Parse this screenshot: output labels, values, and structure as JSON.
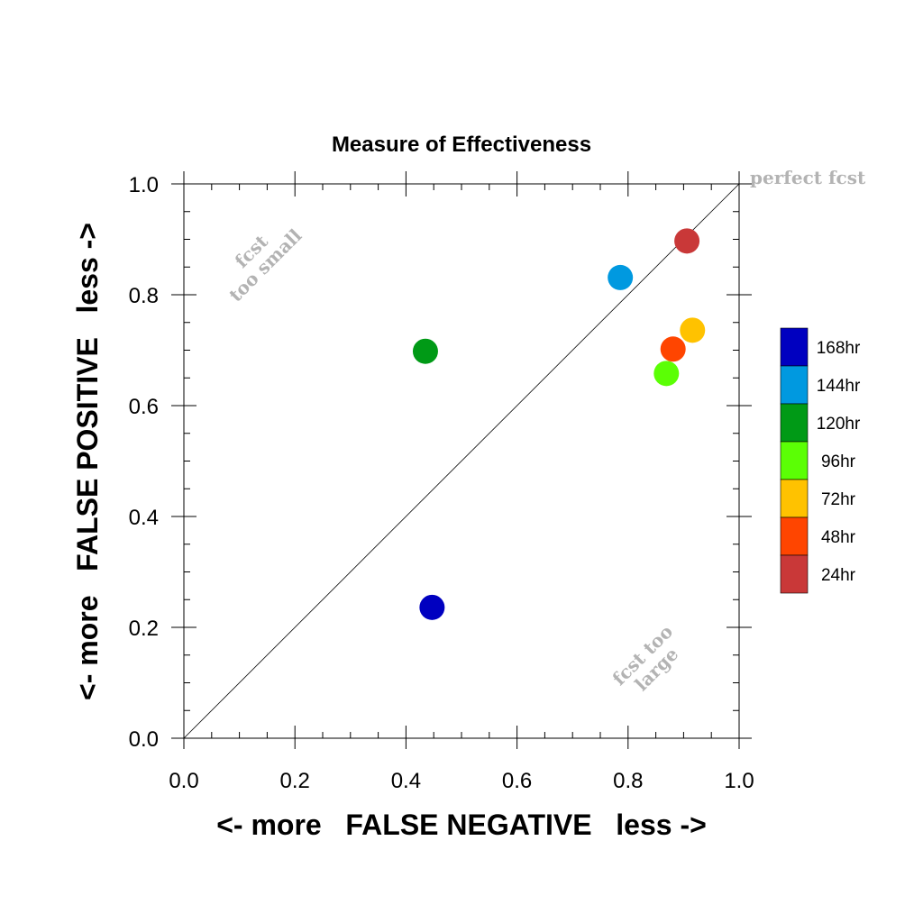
{
  "chart_data": {
    "type": "scatter",
    "title": "Measure of Effectiveness",
    "xlabel": "<- more   FALSE NEGATIVE   less ->",
    "ylabel": "<- more   FALSE POSITIVE   less ->",
    "xlim": [
      0,
      1
    ],
    "ylim": [
      0,
      1
    ],
    "xticks": [
      "0.0",
      "0.2",
      "0.4",
      "0.6",
      "0.8",
      "1.0"
    ],
    "yticks": [
      "0.0",
      "0.2",
      "0.4",
      "0.6",
      "0.8",
      "1.0"
    ],
    "grid": false,
    "diagonal": true,
    "annotations": {
      "top_right": "perfect fcst",
      "upper_left": [
        "fcst",
        "too small"
      ],
      "lower_right": [
        "fcst too",
        "large"
      ]
    },
    "legend_position": "right",
    "series": [
      {
        "name": "168hr",
        "color": "#0000c0",
        "x": 0.447,
        "y": 0.236
      },
      {
        "name": "144hr",
        "color": "#0099e0",
        "x": 0.786,
        "y": 0.831
      },
      {
        "name": "120hr",
        "color": "#009a16",
        "x": 0.435,
        "y": 0.698
      },
      {
        "name": "96hr",
        "color": "#5bff05",
        "x": 0.869,
        "y": 0.658
      },
      {
        "name": "72hr",
        "color": "#ffc200",
        "x": 0.916,
        "y": 0.736
      },
      {
        "name": "48hr",
        "color": "#ff4500",
        "x": 0.881,
        "y": 0.702
      },
      {
        "name": "24hr",
        "color": "#c93838",
        "x": 0.906,
        "y": 0.897
      }
    ]
  }
}
